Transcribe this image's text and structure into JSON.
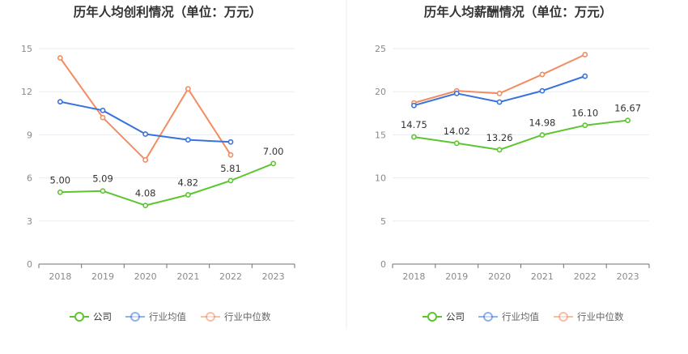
{
  "colors": {
    "company": "#5cc631",
    "industry_avg": "#3873dd",
    "industry_median": "#f38c61"
  },
  "chart_data": [
    {
      "type": "line",
      "title": "历年人均创利情况（单位：万元）",
      "categories": [
        "2018",
        "2019",
        "2020",
        "2021",
        "2022",
        "2023"
      ],
      "ylim": [
        0,
        15
      ],
      "yticks": [
        "0",
        "3",
        "6",
        "9",
        "12",
        "15"
      ],
      "grid": true,
      "legend_position": "bottom",
      "series": [
        {
          "name": "公司",
          "values": [
            5.0,
            5.09,
            4.08,
            4.82,
            5.81,
            7.0
          ],
          "labels": [
            "5.00",
            "5.09",
            "4.08",
            "4.82",
            "5.81",
            "7.00"
          ]
        },
        {
          "name": "行业均值",
          "values": [
            11.3,
            10.7,
            9.05,
            8.65,
            8.5,
            null
          ]
        },
        {
          "name": "行业中位数",
          "values": [
            14.35,
            10.2,
            7.25,
            12.2,
            7.6,
            null
          ]
        }
      ]
    },
    {
      "type": "line",
      "title": "历年人均薪酬情况（单位：万元）",
      "categories": [
        "2018",
        "2019",
        "2020",
        "2021",
        "2022",
        "2023"
      ],
      "ylim": [
        0,
        25
      ],
      "yticks": [
        "0",
        "5",
        "10",
        "15",
        "20",
        "25"
      ],
      "grid": true,
      "legend_position": "bottom",
      "series": [
        {
          "name": "公司",
          "values": [
            14.75,
            14.02,
            13.26,
            14.98,
            16.1,
            16.67
          ],
          "labels": [
            "14.75",
            "14.02",
            "13.26",
            "14.98",
            "16.10",
            "16.67"
          ]
        },
        {
          "name": "行业均值",
          "values": [
            18.4,
            19.8,
            18.8,
            20.1,
            21.8,
            null
          ]
        },
        {
          "name": "行业中位数",
          "values": [
            18.7,
            20.1,
            19.8,
            22.0,
            24.3,
            null
          ]
        }
      ]
    }
  ]
}
